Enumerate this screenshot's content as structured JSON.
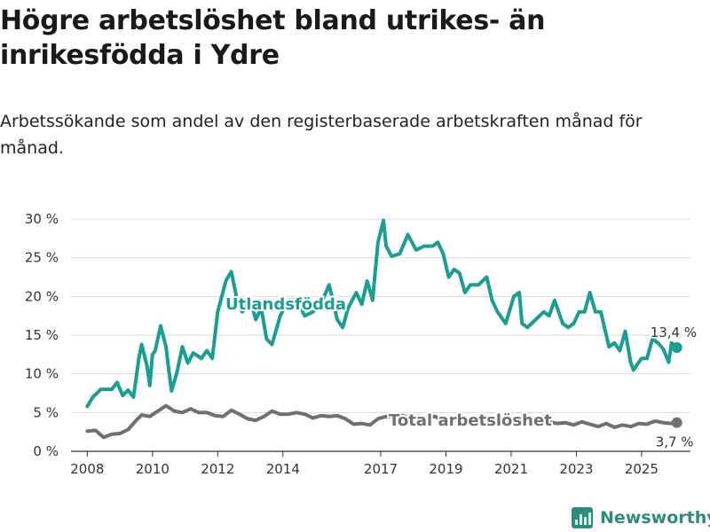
{
  "title": "Högre arbetslöshet bland utrikes- än inrikesfödda i Ydre",
  "subtitle": "Arbetssökande som andel av den registerbaserade arbetskraften månad för månad.",
  "brand": {
    "name": "Newsworthy",
    "icon": "newsworthy-logo-icon",
    "color": "#2e8d7a"
  },
  "chart_data": {
    "type": "line",
    "title": "Högre arbetslöshet bland utrikes- än inrikesfödda i Ydre",
    "subtitle": "Arbetssökande som andel av den registerbaserade arbetskraften månad för månad.",
    "xlabel": "",
    "ylabel": "",
    "x_ticks": [
      "2008",
      "2010",
      "2012",
      "2014",
      "2017",
      "2019",
      "2021",
      "2023",
      "2025"
    ],
    "y_ticks": [
      "0 %",
      "5 %",
      "10 %",
      "15 %",
      "20 %",
      "25 %",
      "30 %"
    ],
    "ylim": [
      0,
      30
    ],
    "grid": true,
    "legend": "inline labels",
    "series": [
      {
        "name": "Utlandsfödda",
        "color": "#1a9e91",
        "last_value_label": "13,4 %",
        "points": [
          [
            "2008-01",
            5.8
          ],
          [
            "2008-03",
            7.0
          ],
          [
            "2008-06",
            8.0
          ],
          [
            "2008-10",
            8.0
          ],
          [
            "2008-12",
            8.9
          ],
          [
            "2009-02",
            7.2
          ],
          [
            "2009-04",
            7.9
          ],
          [
            "2009-06",
            7.0
          ],
          [
            "2009-08",
            12.0
          ],
          [
            "2009-09",
            13.8
          ],
          [
            "2009-11",
            11.0
          ],
          [
            "2009-12",
            8.5
          ],
          [
            "2010-01",
            12.5
          ],
          [
            "2010-02",
            13.0
          ],
          [
            "2010-04",
            16.2
          ],
          [
            "2010-06",
            13.5
          ],
          [
            "2010-07",
            10.5
          ],
          [
            "2010-08",
            7.8
          ],
          [
            "2010-10",
            10.2
          ],
          [
            "2010-12",
            13.5
          ],
          [
            "2011-02",
            11.4
          ],
          [
            "2011-04",
            12.7
          ],
          [
            "2011-07",
            12.0
          ],
          [
            "2011-09",
            13.0
          ],
          [
            "2011-11",
            12.0
          ],
          [
            "2012-01",
            18.0
          ],
          [
            "2012-04",
            22.0
          ],
          [
            "2012-06",
            23.2
          ],
          [
            "2012-08",
            19.8
          ],
          [
            "2012-10",
            18.0
          ],
          [
            "2013-01",
            19.5
          ],
          [
            "2013-03",
            17.0
          ],
          [
            "2013-05",
            18.5
          ],
          [
            "2013-07",
            14.5
          ],
          [
            "2013-09",
            13.8
          ],
          [
            "2013-12",
            17.5
          ],
          [
            "2014-03",
            19.5
          ],
          [
            "2014-06",
            19.5
          ],
          [
            "2014-09",
            17.5
          ],
          [
            "2014-12",
            18.0
          ],
          [
            "2015-03",
            19.0
          ],
          [
            "2015-06",
            21.5
          ],
          [
            "2015-09",
            17.0
          ],
          [
            "2015-11",
            16.0
          ],
          [
            "2016-01",
            18.5
          ],
          [
            "2016-04",
            20.5
          ],
          [
            "2016-06",
            19.0
          ],
          [
            "2016-08",
            22.0
          ],
          [
            "2016-10",
            19.5
          ],
          [
            "2016-12",
            27.0
          ],
          [
            "2017-02",
            29.8
          ],
          [
            "2017-03",
            26.5
          ],
          [
            "2017-05",
            25.2
          ],
          [
            "2017-08",
            25.5
          ],
          [
            "2017-11",
            28.0
          ],
          [
            "2018-02",
            26.0
          ],
          [
            "2018-05",
            26.5
          ],
          [
            "2018-08",
            26.5
          ],
          [
            "2018-10",
            27.0
          ],
          [
            "2018-12",
            25.5
          ],
          [
            "2019-02",
            22.5
          ],
          [
            "2019-04",
            23.5
          ],
          [
            "2019-06",
            23.0
          ],
          [
            "2019-08",
            20.5
          ],
          [
            "2019-10",
            21.5
          ],
          [
            "2020-01",
            21.5
          ],
          [
            "2020-04",
            22.5
          ],
          [
            "2020-06",
            19.5
          ],
          [
            "2020-08",
            18.0
          ],
          [
            "2020-11",
            16.5
          ],
          [
            "2021-02",
            20.0
          ],
          [
            "2021-04",
            20.5
          ],
          [
            "2021-05",
            16.5
          ],
          [
            "2021-07",
            16.0
          ],
          [
            "2021-10",
            17.0
          ],
          [
            "2022-01",
            18.0
          ],
          [
            "2022-03",
            17.5
          ],
          [
            "2022-05",
            19.5
          ],
          [
            "2022-08",
            16.5
          ],
          [
            "2022-10",
            16.0
          ],
          [
            "2022-12",
            16.5
          ],
          [
            "2023-02",
            18.0
          ],
          [
            "2023-04",
            18.0
          ],
          [
            "2023-06",
            20.5
          ],
          [
            "2023-08",
            18.0
          ],
          [
            "2023-10",
            18.0
          ],
          [
            "2023-12",
            15.0
          ],
          [
            "2024-01",
            13.5
          ],
          [
            "2024-03",
            14.0
          ],
          [
            "2024-05",
            13.0
          ],
          [
            "2024-07",
            15.5
          ],
          [
            "2024-09",
            11.5
          ],
          [
            "2024-10",
            10.5
          ],
          [
            "2025-01",
            12.0
          ],
          [
            "2025-03",
            12.0
          ],
          [
            "2025-05",
            14.5
          ],
          [
            "2025-07",
            14.0
          ],
          [
            "2025-09",
            13.2
          ],
          [
            "2025-11",
            11.5
          ],
          [
            "2025-12",
            14.0
          ],
          [
            "2026-02",
            13.4
          ]
        ]
      },
      {
        "name": "Total arbetslöshet",
        "color": "#707070",
        "last_value_label": "3,7 %",
        "points": [
          [
            "2008-01",
            2.6
          ],
          [
            "2008-04",
            2.7
          ],
          [
            "2008-07",
            1.8
          ],
          [
            "2008-10",
            2.2
          ],
          [
            "2009-01",
            2.3
          ],
          [
            "2009-04",
            2.8
          ],
          [
            "2009-07",
            4.0
          ],
          [
            "2009-09",
            4.7
          ],
          [
            "2009-12",
            4.5
          ],
          [
            "2010-03",
            5.2
          ],
          [
            "2010-06",
            5.9
          ],
          [
            "2010-09",
            5.2
          ],
          [
            "2010-12",
            5.0
          ],
          [
            "2011-03",
            5.5
          ],
          [
            "2011-06",
            5.0
          ],
          [
            "2011-09",
            5.0
          ],
          [
            "2011-12",
            4.6
          ],
          [
            "2012-03",
            4.5
          ],
          [
            "2012-06",
            5.3
          ],
          [
            "2012-09",
            4.8
          ],
          [
            "2012-12",
            4.2
          ],
          [
            "2013-03",
            4.0
          ],
          [
            "2013-06",
            4.5
          ],
          [
            "2013-09",
            5.2
          ],
          [
            "2013-12",
            4.8
          ],
          [
            "2014-03",
            4.8
          ],
          [
            "2014-06",
            5.0
          ],
          [
            "2014-09",
            4.8
          ],
          [
            "2014-12",
            4.3
          ],
          [
            "2015-03",
            4.6
          ],
          [
            "2015-06",
            4.5
          ],
          [
            "2015-09",
            4.6
          ],
          [
            "2015-12",
            4.2
          ],
          [
            "2016-03",
            3.5
          ],
          [
            "2016-06",
            3.6
          ],
          [
            "2016-09",
            3.4
          ],
          [
            "2016-12",
            4.2
          ],
          [
            "2017-03",
            4.5
          ],
          [
            "2017-06",
            4.4
          ],
          [
            "2017-09",
            4.6
          ],
          [
            "2017-12",
            4.3
          ],
          [
            "2018-03",
            4.5
          ],
          [
            "2018-06",
            4.3
          ],
          [
            "2018-09",
            4.5
          ],
          [
            "2018-12",
            4.0
          ],
          [
            "2019-03",
            4.2
          ],
          [
            "2019-06",
            4.0
          ],
          [
            "2019-09",
            4.2
          ],
          [
            "2019-12",
            4.0
          ],
          [
            "2020-03",
            4.1
          ],
          [
            "2020-06",
            4.3
          ],
          [
            "2020-09",
            4.1
          ],
          [
            "2020-12",
            4.0
          ],
          [
            "2021-03",
            3.9
          ],
          [
            "2021-06",
            3.8
          ],
          [
            "2021-09",
            3.7
          ],
          [
            "2021-12",
            3.6
          ],
          [
            "2022-03",
            3.8
          ],
          [
            "2022-06",
            3.6
          ],
          [
            "2022-09",
            3.7
          ],
          [
            "2022-12",
            3.4
          ],
          [
            "2023-03",
            3.8
          ],
          [
            "2023-06",
            3.5
          ],
          [
            "2023-09",
            3.2
          ],
          [
            "2023-12",
            3.6
          ],
          [
            "2024-03",
            3.1
          ],
          [
            "2024-06",
            3.4
          ],
          [
            "2024-09",
            3.2
          ],
          [
            "2024-12",
            3.6
          ],
          [
            "2025-03",
            3.5
          ],
          [
            "2025-06",
            3.9
          ],
          [
            "2025-09",
            3.7
          ],
          [
            "2025-12",
            3.6
          ],
          [
            "2026-02",
            3.7
          ]
        ]
      }
    ]
  }
}
